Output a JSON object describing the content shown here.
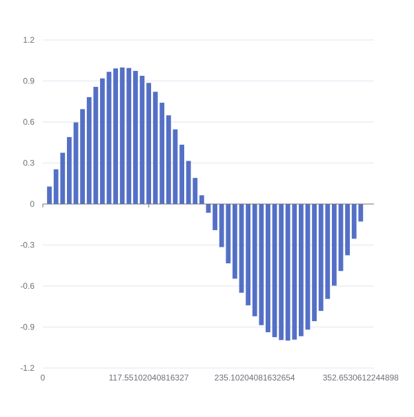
{
  "chart_data": {
    "type": "bar",
    "title": "",
    "xlabel": "",
    "ylabel": "",
    "xlim": [
      0,
      367.3469387755102
    ],
    "ylim": [
      -1.2,
      1.2
    ],
    "grid": true,
    "color": "#5470c6",
    "y_ticks": [
      "1.2",
      "0.9",
      "0.6",
      "0.3",
      "0",
      "-0.3",
      "-0.6",
      "-0.9",
      "-1.2"
    ],
    "y_tick_values": [
      1.2,
      0.9,
      0.6,
      0.3,
      0,
      -0.3,
      -0.6,
      -0.9,
      -1.2
    ],
    "x_ticks": [
      "0",
      "117.55102040816327",
      "235.10204081632654",
      "352.6530612244898"
    ],
    "x_tick_values": [
      0,
      117.55102040816327,
      235.10204081632654,
      352.6530612244898
    ],
    "x": [
      7.347,
      14.694,
      22.041,
      29.388,
      36.735,
      44.082,
      51.429,
      58.776,
      66.122,
      73.469,
      80.816,
      88.163,
      95.51,
      102.857,
      110.204,
      117.551,
      124.898,
      132.245,
      139.592,
      146.939,
      154.286,
      161.633,
      168.98,
      176.327,
      183.673,
      191.02,
      198.367,
      205.714,
      213.061,
      220.408,
      227.755,
      235.102,
      242.449,
      249.796,
      257.143,
      264.49,
      271.837,
      279.184,
      286.531,
      293.878,
      301.224,
      308.571,
      315.918,
      323.265,
      330.612,
      337.959,
      345.306,
      352.653
    ],
    "values": [
      0.128,
      0.254,
      0.375,
      0.49,
      0.597,
      0.694,
      0.782,
      0.857,
      0.919,
      0.967,
      0.992,
      0.999,
      0.995,
      0.974,
      0.938,
      0.886,
      0.821,
      0.741,
      0.649,
      0.546,
      0.434,
      0.315,
      0.191,
      0.064,
      -0.064,
      -0.191,
      -0.315,
      -0.434,
      -0.546,
      -0.649,
      -0.741,
      -0.821,
      -0.886,
      -0.938,
      -0.974,
      -0.995,
      -0.999,
      -0.992,
      -0.967,
      -0.919,
      -0.857,
      -0.782,
      -0.694,
      -0.597,
      -0.49,
      -0.375,
      -0.254,
      -0.128
    ]
  }
}
